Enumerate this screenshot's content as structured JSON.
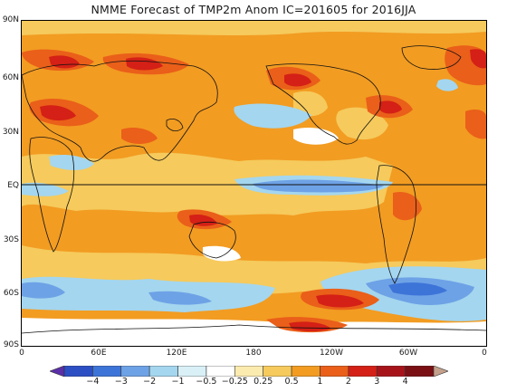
{
  "title": "NMME Forecast of TMP2m Anom   IC=201605 for 2016JJA",
  "lat_labels": [
    "90N",
    "60N",
    "30N",
    "EQ",
    "30S",
    "60S",
    "90S"
  ],
  "lon_labels": [
    "0",
    "60E",
    "120E",
    "180",
    "120W",
    "60W",
    "0"
  ],
  "colorbar": {
    "colors": [
      "#5a2fa8",
      "#2c4fc4",
      "#3d74d8",
      "#6ea2e6",
      "#a4d6ef",
      "#d9f0f7",
      "#ffffff",
      "#fcebaf",
      "#f6ca5c",
      "#f29c22",
      "#ea5f19",
      "#d42016",
      "#a6141a",
      "#7a1014",
      "#c4a18c"
    ],
    "labels": [
      "−4",
      "−3",
      "−2",
      "−1",
      "−0.5",
      "−0.25",
      "0.25",
      "0.5",
      "1",
      "2",
      "3",
      "4"
    ]
  },
  "colors": {
    "background": "#f29c22",
    "warm_1": "#f6ca5c",
    "warm_2": "#ea5f19",
    "warm_3": "#d42016",
    "cool_1": "#a4d6ef",
    "cool_2": "#6ea2e6",
    "cool_3": "#3d74d8",
    "neutral": "#ffffff"
  }
}
